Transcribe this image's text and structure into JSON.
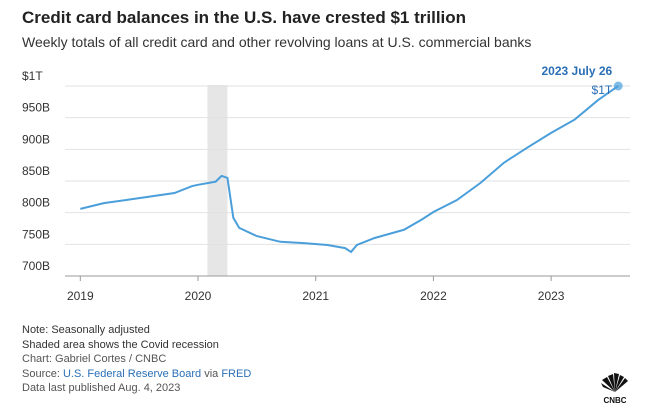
{
  "chart_data": {
    "type": "line",
    "title": "Credit card balances in the U.S. have crested $1 trillion",
    "subtitle": "Weekly totals of all credit card and other revolving loans at U.S. commercial banks",
    "x": [
      2019.0,
      2019.2,
      2019.5,
      2019.8,
      2019.95,
      2020.0,
      2020.15,
      2020.2,
      2020.25,
      2020.3,
      2020.35,
      2020.5,
      2020.7,
      2020.9,
      2021.1,
      2021.25,
      2021.3,
      2021.35,
      2021.5,
      2021.75,
      2021.9,
      2022.0,
      2022.2,
      2022.4,
      2022.6,
      2022.8,
      2023.0,
      2023.2,
      2023.4,
      2023.5,
      2023.57
    ],
    "series": [
      {
        "name": "Credit card and other revolving loans",
        "color": "#4a9fdb",
        "values": [
          806,
          815,
          823,
          831,
          842,
          844,
          849,
          858,
          855,
          792,
          776,
          763,
          754,
          752,
          749,
          744,
          738,
          749,
          760,
          773,
          789,
          801,
          820,
          847,
          879,
          903,
          926,
          947,
          978,
          991,
          1000
        ]
      }
    ],
    "xlim": [
      2018.87,
      2023.67
    ],
    "xticks": [
      2019,
      2020,
      2021,
      2022,
      2023
    ],
    "ylim": [
      700,
      1000
    ],
    "yticks": [
      {
        "value": 700,
        "label": "700B"
      },
      {
        "value": 750,
        "label": "750B"
      },
      {
        "value": 800,
        "label": "800B"
      },
      {
        "value": 850,
        "label": "850B"
      },
      {
        "value": 900,
        "label": "900B"
      },
      {
        "value": 950,
        "label": "950B"
      },
      {
        "value": 1000,
        "label": "$1T"
      }
    ],
    "grid": true,
    "shaded_ranges": [
      [
        2020.08,
        2020.25
      ]
    ],
    "annotations": [
      "2023 July 26",
      "$1T"
    ]
  },
  "footer": {
    "notes": [
      "Note: Seasonally adjusted",
      "Shaded area shows the Covid recession",
      "Chart: Gabriel Cortes / CNBC"
    ],
    "source": [
      "Source: ",
      "U.S. Federal Reserve Board",
      " via ",
      "FRED"
    ],
    "published": "Data last published Aug. 4, 2023",
    "logo": "CNBC"
  }
}
